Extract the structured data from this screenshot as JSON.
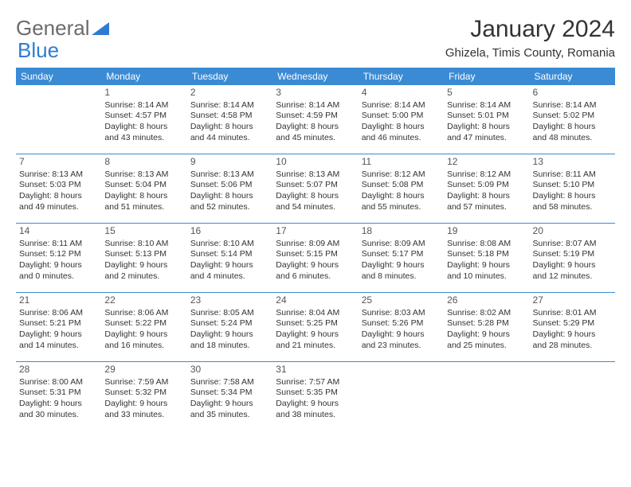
{
  "brand": {
    "part1": "General",
    "part2": "Blue"
  },
  "title": "January 2024",
  "location": "Ghizela, Timis County, Romania",
  "colors": {
    "header_bg": "#3b8bd4",
    "header_text": "#ffffff",
    "line": "#3b8bd4",
    "text": "#333333",
    "logo_gray": "#6b6b6b",
    "logo_blue": "#2e7cd1"
  },
  "day_headers": [
    "Sunday",
    "Monday",
    "Tuesday",
    "Wednesday",
    "Thursday",
    "Friday",
    "Saturday"
  ],
  "weeks": [
    [
      null,
      {
        "n": "1",
        "sr": "Sunrise: 8:14 AM",
        "ss": "Sunset: 4:57 PM",
        "d1": "Daylight: 8 hours",
        "d2": "and 43 minutes."
      },
      {
        "n": "2",
        "sr": "Sunrise: 8:14 AM",
        "ss": "Sunset: 4:58 PM",
        "d1": "Daylight: 8 hours",
        "d2": "and 44 minutes."
      },
      {
        "n": "3",
        "sr": "Sunrise: 8:14 AM",
        "ss": "Sunset: 4:59 PM",
        "d1": "Daylight: 8 hours",
        "d2": "and 45 minutes."
      },
      {
        "n": "4",
        "sr": "Sunrise: 8:14 AM",
        "ss": "Sunset: 5:00 PM",
        "d1": "Daylight: 8 hours",
        "d2": "and 46 minutes."
      },
      {
        "n": "5",
        "sr": "Sunrise: 8:14 AM",
        "ss": "Sunset: 5:01 PM",
        "d1": "Daylight: 8 hours",
        "d2": "and 47 minutes."
      },
      {
        "n": "6",
        "sr": "Sunrise: 8:14 AM",
        "ss": "Sunset: 5:02 PM",
        "d1": "Daylight: 8 hours",
        "d2": "and 48 minutes."
      }
    ],
    [
      {
        "n": "7",
        "sr": "Sunrise: 8:13 AM",
        "ss": "Sunset: 5:03 PM",
        "d1": "Daylight: 8 hours",
        "d2": "and 49 minutes."
      },
      {
        "n": "8",
        "sr": "Sunrise: 8:13 AM",
        "ss": "Sunset: 5:04 PM",
        "d1": "Daylight: 8 hours",
        "d2": "and 51 minutes."
      },
      {
        "n": "9",
        "sr": "Sunrise: 8:13 AM",
        "ss": "Sunset: 5:06 PM",
        "d1": "Daylight: 8 hours",
        "d2": "and 52 minutes."
      },
      {
        "n": "10",
        "sr": "Sunrise: 8:13 AM",
        "ss": "Sunset: 5:07 PM",
        "d1": "Daylight: 8 hours",
        "d2": "and 54 minutes."
      },
      {
        "n": "11",
        "sr": "Sunrise: 8:12 AM",
        "ss": "Sunset: 5:08 PM",
        "d1": "Daylight: 8 hours",
        "d2": "and 55 minutes."
      },
      {
        "n": "12",
        "sr": "Sunrise: 8:12 AM",
        "ss": "Sunset: 5:09 PM",
        "d1": "Daylight: 8 hours",
        "d2": "and 57 minutes."
      },
      {
        "n": "13",
        "sr": "Sunrise: 8:11 AM",
        "ss": "Sunset: 5:10 PM",
        "d1": "Daylight: 8 hours",
        "d2": "and 58 minutes."
      }
    ],
    [
      {
        "n": "14",
        "sr": "Sunrise: 8:11 AM",
        "ss": "Sunset: 5:12 PM",
        "d1": "Daylight: 9 hours",
        "d2": "and 0 minutes."
      },
      {
        "n": "15",
        "sr": "Sunrise: 8:10 AM",
        "ss": "Sunset: 5:13 PM",
        "d1": "Daylight: 9 hours",
        "d2": "and 2 minutes."
      },
      {
        "n": "16",
        "sr": "Sunrise: 8:10 AM",
        "ss": "Sunset: 5:14 PM",
        "d1": "Daylight: 9 hours",
        "d2": "and 4 minutes."
      },
      {
        "n": "17",
        "sr": "Sunrise: 8:09 AM",
        "ss": "Sunset: 5:15 PM",
        "d1": "Daylight: 9 hours",
        "d2": "and 6 minutes."
      },
      {
        "n": "18",
        "sr": "Sunrise: 8:09 AM",
        "ss": "Sunset: 5:17 PM",
        "d1": "Daylight: 9 hours",
        "d2": "and 8 minutes."
      },
      {
        "n": "19",
        "sr": "Sunrise: 8:08 AM",
        "ss": "Sunset: 5:18 PM",
        "d1": "Daylight: 9 hours",
        "d2": "and 10 minutes."
      },
      {
        "n": "20",
        "sr": "Sunrise: 8:07 AM",
        "ss": "Sunset: 5:19 PM",
        "d1": "Daylight: 9 hours",
        "d2": "and 12 minutes."
      }
    ],
    [
      {
        "n": "21",
        "sr": "Sunrise: 8:06 AM",
        "ss": "Sunset: 5:21 PM",
        "d1": "Daylight: 9 hours",
        "d2": "and 14 minutes."
      },
      {
        "n": "22",
        "sr": "Sunrise: 8:06 AM",
        "ss": "Sunset: 5:22 PM",
        "d1": "Daylight: 9 hours",
        "d2": "and 16 minutes."
      },
      {
        "n": "23",
        "sr": "Sunrise: 8:05 AM",
        "ss": "Sunset: 5:24 PM",
        "d1": "Daylight: 9 hours",
        "d2": "and 18 minutes."
      },
      {
        "n": "24",
        "sr": "Sunrise: 8:04 AM",
        "ss": "Sunset: 5:25 PM",
        "d1": "Daylight: 9 hours",
        "d2": "and 21 minutes."
      },
      {
        "n": "25",
        "sr": "Sunrise: 8:03 AM",
        "ss": "Sunset: 5:26 PM",
        "d1": "Daylight: 9 hours",
        "d2": "and 23 minutes."
      },
      {
        "n": "26",
        "sr": "Sunrise: 8:02 AM",
        "ss": "Sunset: 5:28 PM",
        "d1": "Daylight: 9 hours",
        "d2": "and 25 minutes."
      },
      {
        "n": "27",
        "sr": "Sunrise: 8:01 AM",
        "ss": "Sunset: 5:29 PM",
        "d1": "Daylight: 9 hours",
        "d2": "and 28 minutes."
      }
    ],
    [
      {
        "n": "28",
        "sr": "Sunrise: 8:00 AM",
        "ss": "Sunset: 5:31 PM",
        "d1": "Daylight: 9 hours",
        "d2": "and 30 minutes."
      },
      {
        "n": "29",
        "sr": "Sunrise: 7:59 AM",
        "ss": "Sunset: 5:32 PM",
        "d1": "Daylight: 9 hours",
        "d2": "and 33 minutes."
      },
      {
        "n": "30",
        "sr": "Sunrise: 7:58 AM",
        "ss": "Sunset: 5:34 PM",
        "d1": "Daylight: 9 hours",
        "d2": "and 35 minutes."
      },
      {
        "n": "31",
        "sr": "Sunrise: 7:57 AM",
        "ss": "Sunset: 5:35 PM",
        "d1": "Daylight: 9 hours",
        "d2": "and 38 minutes."
      },
      null,
      null,
      null
    ]
  ]
}
